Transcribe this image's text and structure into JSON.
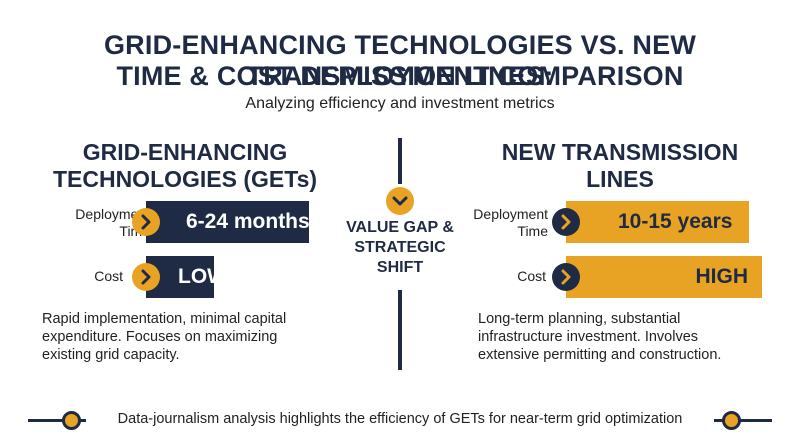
{
  "header": {
    "title_line1": "GRID-ENHANCING TECHNOLOGIES VS. NEW TRANSMISSION LINES:",
    "title_line2": "TIME & COST DEPLOYMENT COMPARISON",
    "subtitle": "Analyzing efficiency and investment metrics"
  },
  "left": {
    "heading_line1": "GRID-ENHANCING",
    "heading_line2": "TECHNOLOGIES (GETs)",
    "deployment_label_line1": "Deployment",
    "deployment_label_line2": "Time",
    "deployment_value": "6-24 months",
    "cost_label": "Cost",
    "cost_value": "LOW",
    "description_lines": [
      "Rapid implementation, minimal capital",
      "expenditure. Focuses on maximizing",
      "existing grid capacity."
    ]
  },
  "center": {
    "lines": [
      "VALUE GAP &",
      "STRATEGIC",
      "SHIFT"
    ]
  },
  "right": {
    "heading": "NEW TRANSMISSION LINES",
    "deployment_label_line1": "Deployment",
    "deployment_label_line2": "Time",
    "deployment_value": "10-15 years",
    "cost_label": "Cost",
    "cost_value": "HIGH",
    "description_lines": [
      "Long-term planning, substantial",
      "infrastructure investment. Involves",
      "extensive permitting and construction."
    ]
  },
  "footer": {
    "text": "Data-journalism analysis highlights the efficiency of GETs for near-term grid optimization"
  },
  "colors": {
    "navy": "#1f2a44",
    "gold": "#e8a224"
  }
}
